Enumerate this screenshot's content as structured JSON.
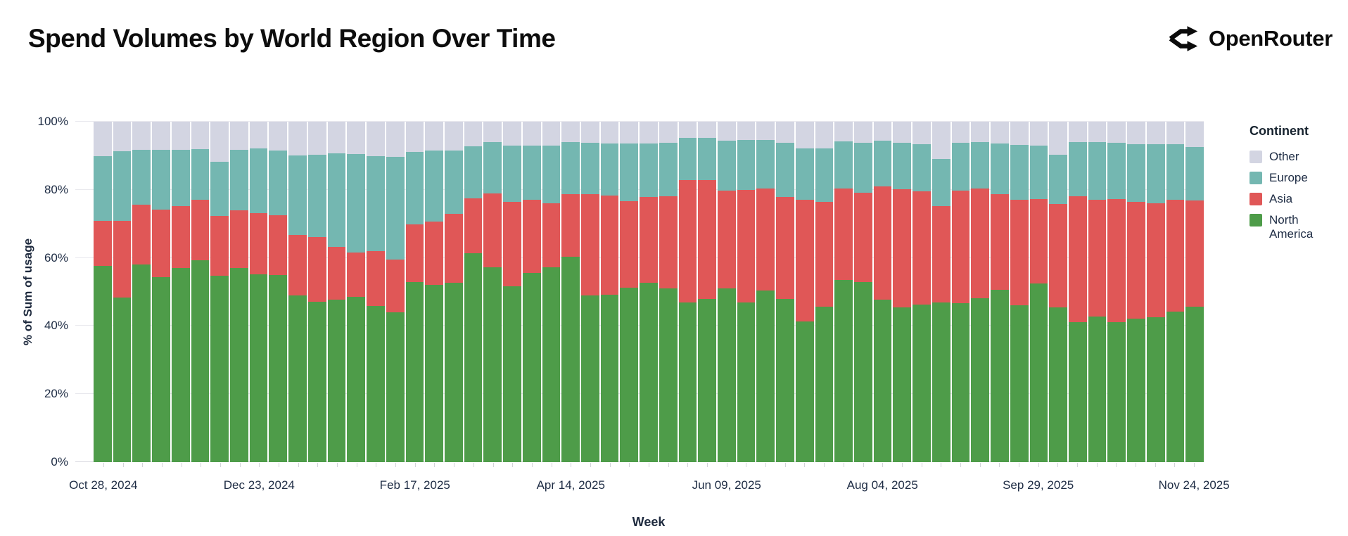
{
  "header": {
    "title": "Spend Volumes by World Region Over Time",
    "brand": "OpenRouter"
  },
  "axes": {
    "y_title": "% of Sum of usage",
    "x_title": "Week",
    "y_tick_labels": [
      "0%",
      "20%",
      "40%",
      "60%",
      "80%",
      "100%"
    ],
    "x_tick_labels": [
      "Oct 28, 2024",
      "Dec 23, 2024",
      "Feb 17, 2025",
      "Apr 14, 2025",
      "Jun 09, 2025",
      "Aug 04, 2025",
      "Sep 29, 2025",
      "Nov 24, 2025"
    ]
  },
  "legend": {
    "title": "Continent",
    "items": [
      {
        "label": "Other",
        "color": "#d3d5e2"
      },
      {
        "label": "Europe",
        "color": "#74b7b1"
      },
      {
        "label": "Asia",
        "color": "#e05757"
      },
      {
        "label": "North America",
        "color": "#4e9c49"
      }
    ]
  },
  "colors": {
    "north_america": "#4e9c49",
    "asia": "#e05757",
    "europe": "#74b7b1",
    "other": "#d3d5e2",
    "gridline": "#e9e9ee",
    "axis_text": "#1e2c44",
    "title_text": "#0d0d0d"
  },
  "chart_data": {
    "type": "bar",
    "stacked": true,
    "normalized_percent": true,
    "title": "Spend Volumes by World Region Over Time",
    "xlabel": "Week",
    "ylabel": "% of Sum of usage",
    "ylim": [
      0,
      100
    ],
    "grid": true,
    "legend_position": "right",
    "y_gridlines": [
      0,
      20,
      40,
      60,
      80,
      100
    ],
    "x": [
      "Oct 28, 2024",
      "Nov 04, 2024",
      "Nov 11, 2024",
      "Nov 18, 2024",
      "Nov 25, 2024",
      "Dec 02, 2024",
      "Dec 09, 2024",
      "Dec 16, 2024",
      "Dec 23, 2024",
      "Dec 30, 2024",
      "Jan 06, 2025",
      "Jan 13, 2025",
      "Jan 20, 2025",
      "Jan 27, 2025",
      "Feb 03, 2025",
      "Feb 10, 2025",
      "Feb 17, 2025",
      "Feb 24, 2025",
      "Mar 03, 2025",
      "Mar 10, 2025",
      "Mar 17, 2025",
      "Mar 24, 2025",
      "Mar 31, 2025",
      "Apr 07, 2025",
      "Apr 14, 2025",
      "Apr 21, 2025",
      "Apr 28, 2025",
      "May 05, 2025",
      "May 12, 2025",
      "May 19, 2025",
      "May 26, 2025",
      "Jun 02, 2025",
      "Jun 09, 2025",
      "Jun 16, 2025",
      "Jun 23, 2025",
      "Jun 30, 2025",
      "Jul 07, 2025",
      "Jul 14, 2025",
      "Jul 21, 2025",
      "Jul 28, 2025",
      "Aug 04, 2025",
      "Aug 11, 2025",
      "Aug 18, 2025",
      "Aug 25, 2025",
      "Sep 01, 2025",
      "Sep 08, 2025",
      "Sep 15, 2025",
      "Sep 22, 2025",
      "Sep 29, 2025",
      "Oct 06, 2025",
      "Oct 13, 2025",
      "Oct 20, 2025",
      "Oct 27, 2025",
      "Nov 03, 2025",
      "Nov 10, 2025",
      "Nov 17, 2025",
      "Nov 24, 2025"
    ],
    "x_tick_indices": [
      0,
      8,
      16,
      24,
      32,
      40,
      48,
      56
    ],
    "series": [
      {
        "name": "North America",
        "color": "#4e9c49",
        "values": [
          57.7,
          48.4,
          58.1,
          54.3,
          57.1,
          59.2,
          54.8,
          57.1,
          55.2,
          55.0,
          48.9,
          47.1,
          47.8,
          48.5,
          45.9,
          44.1,
          52.9,
          52.0,
          52.7,
          61.3,
          57.3,
          51.7,
          55.5,
          57.3,
          60.4,
          49.0,
          49.2,
          51.3,
          52.7,
          51.1,
          46.9,
          48.0,
          51.0,
          46.9,
          50.4,
          48.0,
          41.3,
          45.7,
          53.6,
          52.9,
          47.8,
          45.4,
          46.2,
          46.9,
          46.6,
          48.2,
          50.6,
          46.1,
          52.5,
          45.4,
          41.1,
          42.7,
          41.1,
          42.1,
          42.5,
          44.3,
          45.7
        ]
      },
      {
        "name": "Asia",
        "color": "#e05757",
        "values": [
          13.1,
          22.4,
          17.5,
          19.9,
          18.2,
          17.8,
          17.5,
          16.9,
          18.0,
          17.5,
          17.9,
          19.1,
          15.5,
          13.0,
          16.1,
          15.4,
          16.9,
          18.7,
          20.3,
          16.2,
          21.7,
          24.8,
          21.5,
          18.7,
          18.4,
          29.8,
          29.2,
          25.4,
          25.2,
          27.1,
          35.9,
          34.8,
          28.7,
          33.1,
          30.0,
          29.9,
          35.7,
          30.8,
          26.8,
          26.2,
          33.2,
          34.7,
          33.3,
          28.4,
          33.1,
          32.1,
          28.2,
          30.9,
          24.7,
          30.4,
          37.0,
          34.3,
          36.1,
          34.4,
          33.5,
          32.7,
          31.2
        ]
      },
      {
        "name": "Europe",
        "color": "#74b7b1",
        "values": [
          19.0,
          20.6,
          16.2,
          17.6,
          16.5,
          15.0,
          15.9,
          17.8,
          19.0,
          19.0,
          23.3,
          24.1,
          27.5,
          28.9,
          27.9,
          30.2,
          21.3,
          20.8,
          18.6,
          15.2,
          15.1,
          16.4,
          15.9,
          16.9,
          15.3,
          15.1,
          15.3,
          16.9,
          15.7,
          15.7,
          12.5,
          12.5,
          14.7,
          14.6,
          14.2,
          16.0,
          15.2,
          15.7,
          13.9,
          14.8,
          13.4,
          13.8,
          13.9,
          13.7,
          14.2,
          13.8,
          14.9,
          16.2,
          15.7,
          14.4,
          16.0,
          17.1,
          16.7,
          16.9,
          17.4,
          16.4,
          15.6
        ]
      },
      {
        "name": "Other",
        "color": "#d3d5e2",
        "values": [
          10.2,
          8.6,
          8.2,
          8.2,
          8.2,
          8.0,
          11.8,
          8.2,
          7.8,
          8.5,
          9.9,
          9.7,
          9.2,
          9.6,
          10.1,
          10.3,
          8.9,
          8.5,
          8.4,
          7.3,
          5.9,
          7.1,
          7.1,
          7.1,
          5.9,
          6.1,
          6.3,
          6.4,
          6.4,
          6.1,
          4.7,
          4.7,
          5.6,
          5.4,
          5.4,
          6.1,
          7.8,
          7.8,
          5.7,
          6.1,
          5.6,
          6.1,
          6.6,
          11.0,
          6.1,
          5.9,
          6.3,
          6.8,
          7.1,
          9.8,
          5.9,
          5.9,
          6.1,
          6.6,
          6.6,
          6.6,
          7.5
        ]
      }
    ]
  }
}
